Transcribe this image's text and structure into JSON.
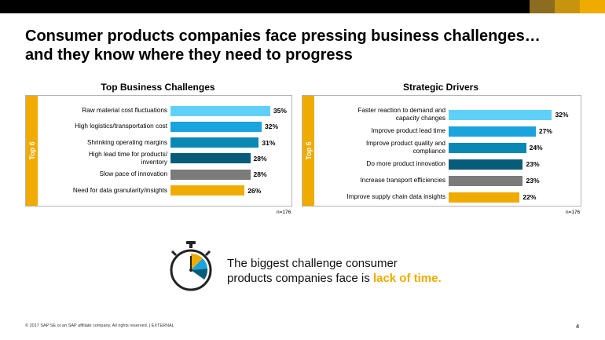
{
  "title": {
    "line1": "Consumer products companies face pressing business challenges…",
    "line2": "and they know where they need to progress"
  },
  "brand_colors": [
    "#000000",
    "#8c6d1f",
    "#c8940d",
    "#f0ab00"
  ],
  "chart_data": [
    {
      "type": "bar",
      "orientation": "horizontal",
      "title": "Top Business Challenges",
      "side_label": "Top 6",
      "categories": [
        [
          "Raw material cost fluctuations"
        ],
        [
          "High logistics/transportation cost"
        ],
        [
          "Shrinking operating margins"
        ],
        [
          "High lead time for products/",
          "inventory"
        ],
        [
          "Slow pace of innovation"
        ],
        [
          "Need for data granularity/insights"
        ]
      ],
      "values": [
        35,
        32,
        31,
        28,
        28,
        26
      ],
      "value_labels": [
        "35%",
        "32%",
        "31%",
        "28%",
        "28%",
        "26%"
      ],
      "colors": [
        "#5fd1f9",
        "#19a4de",
        "#0a88b4",
        "#065c79",
        "#7b7b7b",
        "#f0ab00"
      ],
      "xlim": [
        0,
        40
      ],
      "n": "n=176"
    },
    {
      "type": "bar",
      "orientation": "horizontal",
      "title": "Strategic Drivers",
      "side_label": "Top 6",
      "categories": [
        [
          "Faster reaction to demand and",
          "capacity changes"
        ],
        [
          "Improve product lead time"
        ],
        [
          "Improve product quality and",
          "compliance"
        ],
        [
          "Do more product innovation"
        ],
        [
          "Increase transport efficiencies"
        ],
        [
          "Improve supply chain data insights"
        ]
      ],
      "values": [
        32,
        27,
        24,
        23,
        23,
        22
      ],
      "value_labels": [
        "32%",
        "27%",
        "24%",
        "23%",
        "23%",
        "22%"
      ],
      "colors": [
        "#5fd1f9",
        "#19a4de",
        "#0a88b4",
        "#065c79",
        "#7b7b7b",
        "#f0ab00"
      ],
      "xlim": [
        0,
        37
      ],
      "n": "n=176"
    }
  ],
  "callout": {
    "text_line1": "The biggest challenge consumer",
    "text_line2_prefix": "products companies face is ",
    "highlight": "lack of time."
  },
  "footer": "© 2017 SAP SE or an SAP affiliate company. All rights reserved.  |   EXTERNAL",
  "page_number": "4"
}
